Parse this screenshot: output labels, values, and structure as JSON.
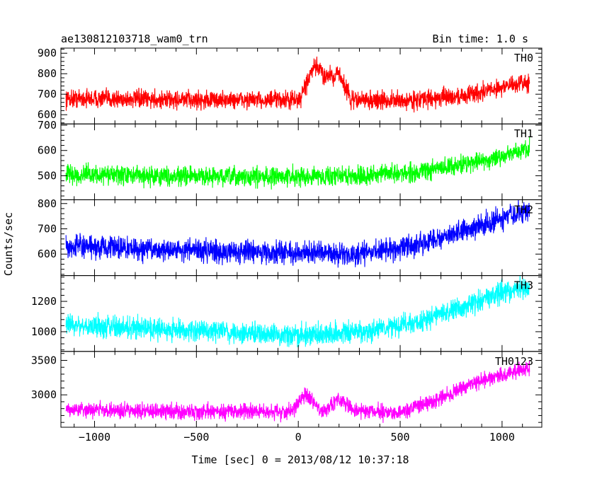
{
  "header": {
    "title": "ae130812103718_wam0_trn",
    "bin_time": "Bin time: 1.0 s"
  },
  "axes": {
    "ylabel": "Counts/sec",
    "xlabel": "Time [sec] 0 = 2013/08/12 10:37:18"
  },
  "chart_data": {
    "type": "line",
    "title": "ae130812103718_wam0_trn",
    "xlabel": "Time [sec] 0 = 2013/08/12 10:37:18",
    "ylabel": "Counts/sec",
    "xlim": [
      -1165,
      1195
    ],
    "x_ticks": [
      -1000,
      -500,
      0,
      500,
      1000
    ],
    "x_tick_labels": [
      "−1000",
      "−500",
      "0",
      "500",
      "1000"
    ],
    "x_range_data": [
      -1140,
      1135
    ],
    "grid": false,
    "panels": [
      {
        "name": "TH0",
        "color": "#ff0000",
        "ylim": [
          555,
          925
        ],
        "y_ticks": [
          600,
          700,
          800,
          900
        ],
        "baseline": [
          [
            -1140,
            680
          ],
          [
            -500,
            672
          ],
          [
            0,
            672
          ],
          [
            300,
            672
          ],
          [
            500,
            667
          ],
          [
            800,
            690
          ],
          [
            1000,
            735
          ],
          [
            1135,
            760
          ]
        ],
        "bumps": [
          [
            90,
            55,
            160
          ],
          [
            190,
            45,
            130
          ]
        ],
        "noise": 65
      },
      {
        "name": "TH1",
        "color": "#00ff00",
        "ylim": [
          405,
          705
        ],
        "y_ticks": [
          500,
          600,
          700
        ],
        "baseline": [
          [
            -1140,
            505
          ],
          [
            -300,
            495
          ],
          [
            300,
            500
          ],
          [
            600,
            515
          ],
          [
            800,
            545
          ],
          [
            1000,
            575
          ],
          [
            1135,
            610
          ]
        ],
        "bumps": [],
        "noise": 55
      },
      {
        "name": "TH2",
        "color": "#0000ff",
        "ylim": [
          515,
          815
        ],
        "y_ticks": [
          600,
          700,
          800
        ],
        "baseline": [
          [
            -1140,
            630
          ],
          [
            -500,
            615
          ],
          [
            0,
            603
          ],
          [
            300,
            600
          ],
          [
            600,
            640
          ],
          [
            800,
            690
          ],
          [
            1000,
            740
          ],
          [
            1135,
            770
          ]
        ],
        "bumps": [],
        "noise": 65
      },
      {
        "name": "TH3",
        "color": "#00ffff",
        "ylim": [
          870,
          1370
        ],
        "y_ticks": [
          1000,
          1200
        ],
        "baseline": [
          [
            -1140,
            1050
          ],
          [
            -500,
            1005
          ],
          [
            0,
            980
          ],
          [
            300,
            990
          ],
          [
            600,
            1070
          ],
          [
            800,
            1160
          ],
          [
            1000,
            1260
          ],
          [
            1135,
            1300
          ]
        ],
        "bumps": [],
        "noise": 105
      },
      {
        "name": "TH0123",
        "color": "#ff00ff",
        "ylim": [
          2530,
          3630
        ],
        "y_ticks": [
          3000,
          3500
        ],
        "baseline": [
          [
            -1140,
            2790
          ],
          [
            -500,
            2760
          ],
          [
            0,
            2760
          ],
          [
            300,
            2770
          ],
          [
            500,
            2740
          ],
          [
            700,
            2960
          ],
          [
            900,
            3210
          ],
          [
            1135,
            3390
          ]
        ],
        "bumps": [
          [
            40,
            45,
            230
          ],
          [
            200,
            50,
            150
          ]
        ],
        "noise": 165
      }
    ]
  }
}
